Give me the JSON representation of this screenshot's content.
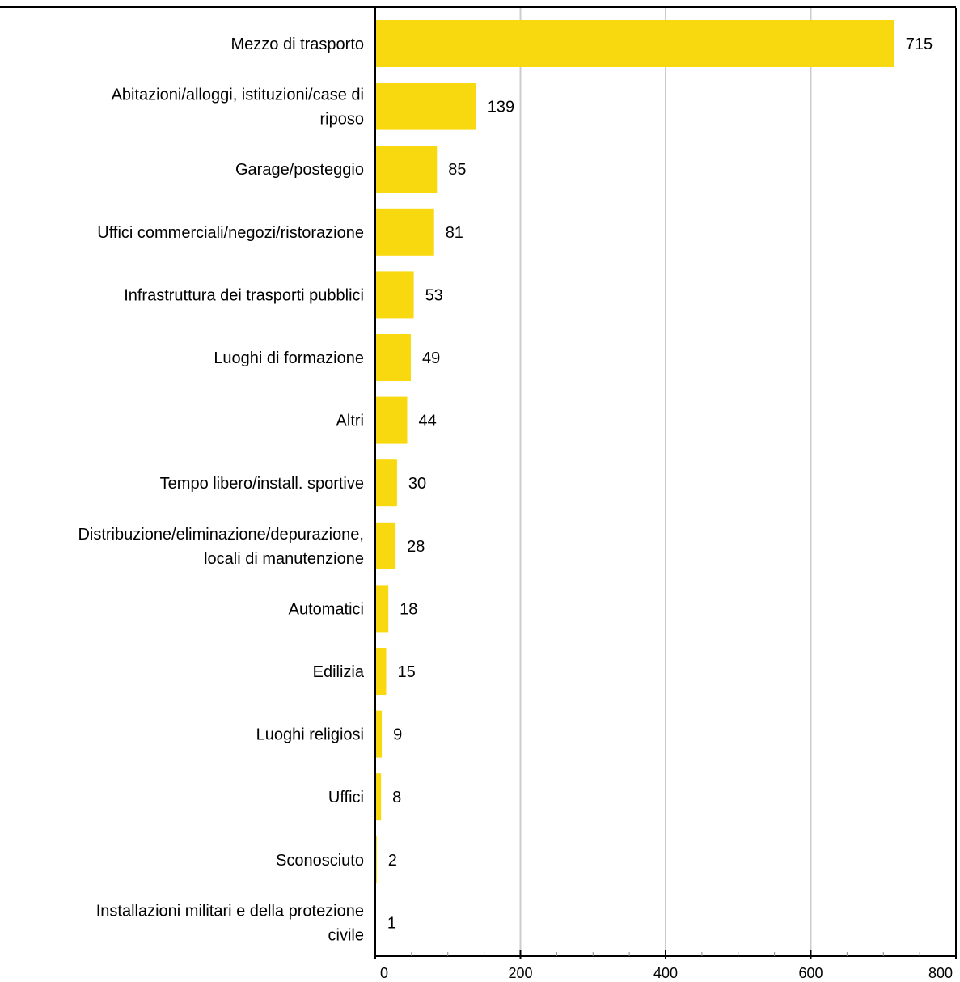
{
  "chart_data": {
    "type": "bar",
    "orientation": "horizontal",
    "categories": [
      "Mezzo di trasporto",
      "Abitazioni/alloggi, istituzioni/case di riposo",
      "Garage/posteggio",
      "Uffici commerciali/negozi/ristorazione",
      "Infrastruttura dei trasporti pubblici",
      "Luoghi di formazione",
      "Altri",
      "Tempo libero/install. sportive",
      "Distribuzione/eliminazione/depurazione, locali di manutenzione",
      "Automatici",
      "Edilizia",
      "Luoghi religiosi",
      "Uffici",
      "Sconosciuto",
      "Installazioni militari e della protezione civile"
    ],
    "category_lines": [
      [
        "Mezzo di trasporto"
      ],
      [
        "Abitazioni/alloggi, istituzioni/case di",
        "riposo"
      ],
      [
        "Garage/posteggio"
      ],
      [
        "Uffici commerciali/negozi/ristorazione"
      ],
      [
        "Infrastruttura dei trasporti pubblici"
      ],
      [
        "Luoghi di formazione"
      ],
      [
        "Altri"
      ],
      [
        "Tempo libero/install. sportive"
      ],
      [
        "Distribuzione/eliminazione/depurazione,",
        "locali di manutenzione"
      ],
      [
        "Automatici"
      ],
      [
        "Edilizia"
      ],
      [
        "Luoghi religiosi"
      ],
      [
        "Uffici"
      ],
      [
        "Sconosciuto"
      ],
      [
        "Installazioni militari e della protezione",
        "civile"
      ]
    ],
    "values": [
      715,
      139,
      85,
      81,
      53,
      49,
      44,
      30,
      28,
      18,
      15,
      9,
      8,
      2,
      1
    ],
    "value_labels": [
      "715",
      "139",
      "85",
      "81",
      "53",
      "49",
      "44",
      "30",
      "28",
      "18",
      "15",
      "9",
      "8",
      "2",
      "1"
    ],
    "xlim": [
      0,
      800
    ],
    "xticks": [
      0,
      200,
      400,
      600,
      800
    ],
    "xtick_labels": [
      "0",
      "200",
      "400",
      "600",
      "800"
    ],
    "grid": true,
    "bar_color": "#f8d90f",
    "grid_color": "#cccccc"
  }
}
